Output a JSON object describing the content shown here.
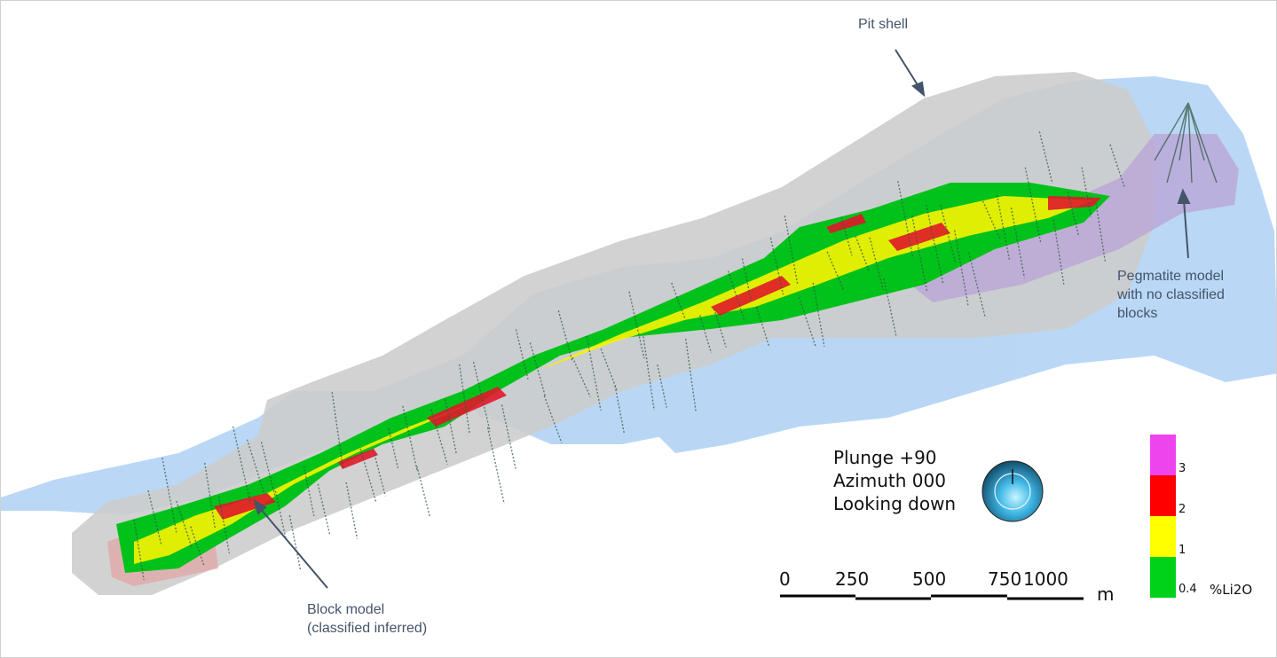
{
  "callouts": {
    "pit_shell": "Pit shell",
    "pegmatite": [
      "Pegmatite model",
      "with no classified",
      "blocks"
    ],
    "block_model": [
      "Block model",
      "(classified inferred)"
    ]
  },
  "view": {
    "lines": [
      "Plunge +90",
      "Azimuth 000",
      "Looking down"
    ],
    "icon": "orientation-sphere-icon"
  },
  "scale_bar": {
    "ticks": [
      "0",
      "250",
      "500",
      "750",
      "1000"
    ],
    "unit": "m"
  },
  "legend": {
    "unit": "%Li2O",
    "bins": [
      {
        "from": "0.4",
        "to": "1",
        "color": "#00d21a"
      },
      {
        "from": "1",
        "to": "2",
        "color": "#ffff00"
      },
      {
        "from": "2",
        "to": "3",
        "color": "#ff0000"
      },
      {
        "from": "3",
        "to": "",
        "color": "#ee44ee"
      }
    ]
  },
  "colors": {
    "water": "#b6d5f5",
    "pit_shell": "#cdcdcd",
    "pegmatite": "#b9a3d6",
    "callout_text": "#44546a"
  }
}
